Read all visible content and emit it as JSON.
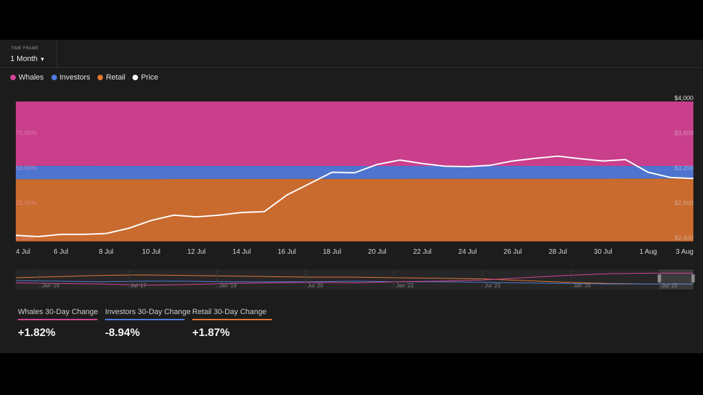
{
  "timeframe": {
    "label": "TIME FRAME",
    "value": "1 Month"
  },
  "legend": [
    {
      "name": "Whales",
      "color": "#d8449a"
    },
    {
      "name": "Investors",
      "color": "#4f7de0"
    },
    {
      "name": "Retail",
      "color": "#e57a34"
    },
    {
      "name": "Price",
      "color": "#ffffff"
    }
  ],
  "chart_data": {
    "type": "area",
    "stacked_percent": true,
    "x": [
      "4 Jul",
      "5 Jul",
      "6 Jul",
      "7 Jul",
      "8 Jul",
      "9 Jul",
      "10 Jul",
      "11 Jul",
      "12 Jul",
      "13 Jul",
      "14 Jul",
      "15 Jul",
      "16 Jul",
      "17 Jul",
      "18 Jul",
      "19 Jul",
      "20 Jul",
      "21 Jul",
      "22 Jul",
      "23 Jul",
      "24 Jul",
      "25 Jul",
      "26 Jul",
      "27 Jul",
      "28 Jul",
      "29 Jul",
      "30 Jul",
      "31 Jul",
      "1 Aug",
      "2 Aug",
      "3 Aug"
    ],
    "x_tick_labels": [
      "4 Jul",
      "6 Jul",
      "8 Jul",
      "10 Jul",
      "12 Jul",
      "14 Jul",
      "16 Jul",
      "18 Jul",
      "20 Jul",
      "22 Jul",
      "24 Jul",
      "26 Jul",
      "28 Jul",
      "30 Jul",
      "1 Aug",
      "3 Aug"
    ],
    "series": [
      {
        "name": "Retail",
        "color": "#c96a2e",
        "values": [
          44.5,
          44.5,
          44.5,
          44.5,
          44.5,
          44.5,
          44.5,
          44.6,
          44.6,
          44.6,
          44.6,
          44.6,
          44.7,
          44.7,
          44.7,
          44.7,
          44.7,
          44.7,
          44.8,
          44.8,
          44.8,
          44.8,
          44.8,
          44.8,
          44.8,
          44.8,
          44.8,
          44.9,
          44.9,
          44.9,
          44.9
        ]
      },
      {
        "name": "Investors",
        "color": "#4f74cf",
        "values": [
          9.5,
          9.5,
          9.5,
          9.5,
          9.4,
          9.4,
          9.4,
          9.3,
          9.3,
          9.3,
          9.3,
          9.3,
          9.2,
          9.2,
          9.2,
          9.2,
          9.2,
          9.2,
          9.1,
          9.1,
          9.1,
          9.1,
          9.1,
          9.1,
          9.1,
          9.1,
          9.1,
          9.0,
          9.0,
          9.0,
          9.0
        ]
      },
      {
        "name": "Whales",
        "color": "#c93f8c",
        "values": [
          46.0,
          46.0,
          46.0,
          46.0,
          46.1,
          46.1,
          46.1,
          46.1,
          46.1,
          46.1,
          46.1,
          46.1,
          46.1,
          46.1,
          46.1,
          46.1,
          46.1,
          46.1,
          46.1,
          46.1,
          46.1,
          46.1,
          46.1,
          46.1,
          46.1,
          46.1,
          46.1,
          46.1,
          46.1,
          46.1,
          46.1
        ]
      }
    ],
    "price": {
      "name": "Price",
      "color": "#ffffff",
      "values": [
        2470,
        2455,
        2480,
        2480,
        2490,
        2550,
        2640,
        2700,
        2680,
        2700,
        2730,
        2740,
        2930,
        3060,
        3190,
        3185,
        3280,
        3330,
        3290,
        3260,
        3255,
        3270,
        3320,
        3350,
        3375,
        3345,
        3320,
        3335,
        3190,
        3130,
        3120
      ]
    },
    "y_left_ticks": [
      "0.00%",
      "25.00%",
      "50.00%",
      "75.00%"
    ],
    "y_left_range": [
      0,
      100
    ],
    "y_right_ticks": [
      "$2,400",
      "$2,800",
      "$3,200",
      "$3,600",
      "$4,000"
    ],
    "y_right_range": [
      2400,
      4000
    ]
  },
  "navigator": {
    "labels": [
      "Jan '16",
      "Jul '17",
      "Jan '19",
      "Jul '20",
      "Jan '22",
      "Jul '23",
      "Jan '25",
      "Jul '25"
    ],
    "lines": [
      {
        "name": "Retail",
        "color": "#e57a34",
        "values": [
          38,
          40,
          42,
          43,
          42,
          41,
          40,
          39,
          39,
          38,
          37,
          36,
          33,
          30,
          28,
          27,
          27
        ]
      },
      {
        "name": "Investors",
        "color": "#4f7de0",
        "values": [
          33,
          32,
          31,
          32,
          32,
          31,
          31,
          31,
          32,
          31,
          31,
          30,
          29,
          28,
          27,
          27,
          27
        ]
      },
      {
        "name": "Whales",
        "color": "#d8449a",
        "values": [
          29,
          28,
          27,
          25,
          26,
          28,
          29,
          30,
          29,
          31,
          32,
          34,
          38,
          42,
          45,
          46,
          46
        ]
      }
    ]
  },
  "stats": [
    {
      "label": "Whales 30-Day Change",
      "value": "+1.82%",
      "color": "#d8449a"
    },
    {
      "label": "Investors 30-Day Change",
      "value": "-8.94%",
      "color": "#4f7de0"
    },
    {
      "label": "Retail 30-Day Change",
      "value": "+1.87%",
      "color": "#e57a34"
    }
  ]
}
